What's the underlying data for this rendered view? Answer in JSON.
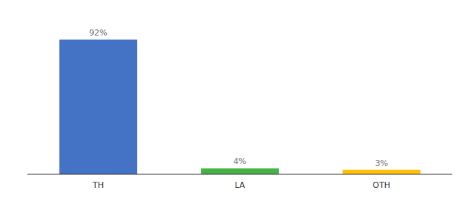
{
  "chart_data": {
    "type": "bar",
    "categories": [
      "TH",
      "LA",
      "OTH"
    ],
    "values": [
      92,
      4,
      3
    ],
    "value_labels": [
      "92%",
      "4%",
      "3%"
    ],
    "colors": [
      "#4472C4",
      "#44B244",
      "#FFC107"
    ],
    "ylim": [
      0,
      105
    ],
    "data_labels": true,
    "tick_labels": "x"
  }
}
